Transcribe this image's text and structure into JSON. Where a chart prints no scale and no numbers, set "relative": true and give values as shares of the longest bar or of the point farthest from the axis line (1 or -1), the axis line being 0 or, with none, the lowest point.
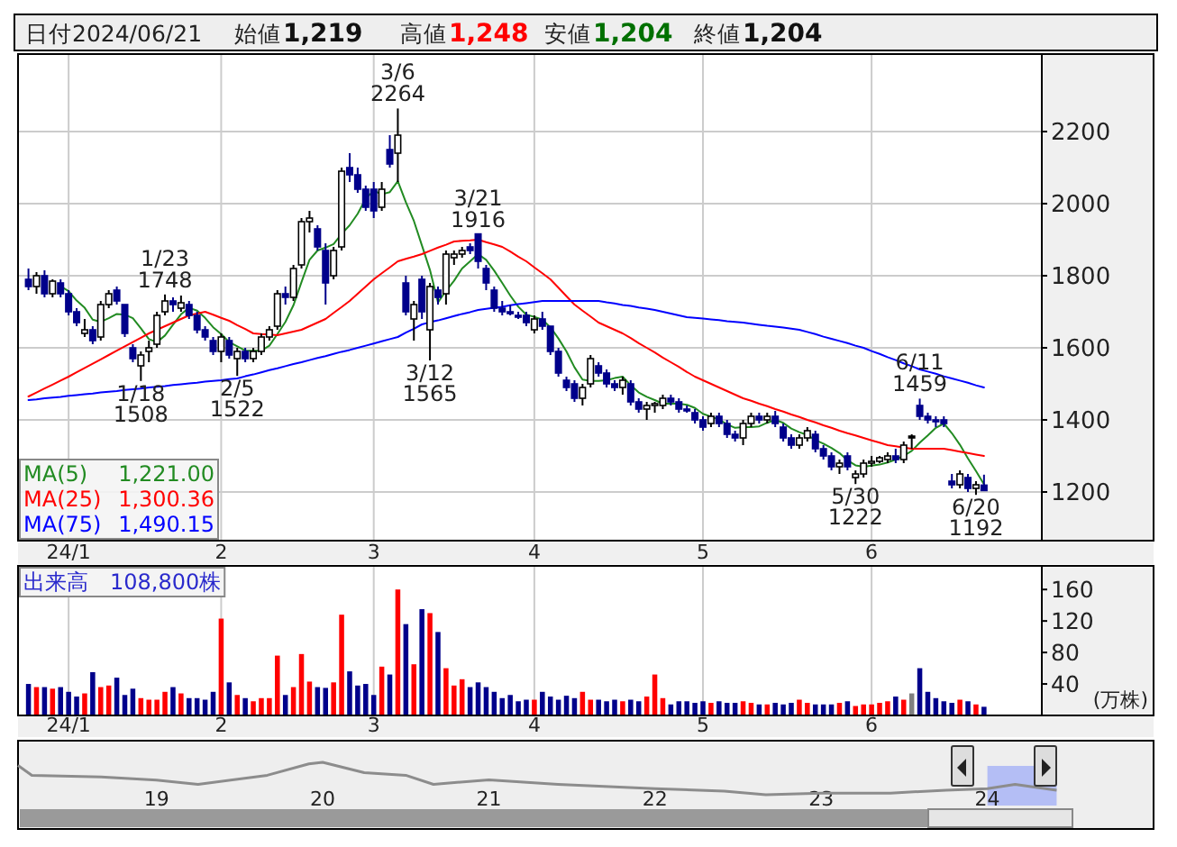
{
  "chart_data": [
    {
      "type": "candlestick",
      "categories": [
        null,
        null,
        null,
        null,
        null,
        "24/1",
        null,
        null,
        null,
        null,
        null,
        null,
        null,
        null,
        null,
        null,
        null,
        null,
        null,
        null,
        null,
        null,
        null,
        null,
        "2",
        null,
        null,
        null,
        null,
        null,
        null,
        null,
        null,
        null,
        null,
        null,
        null,
        null,
        null,
        null,
        null,
        null,
        null,
        "3",
        null,
        null,
        null,
        null,
        null,
        null,
        null,
        null,
        null,
        null,
        null,
        null,
        null,
        null,
        null,
        null,
        null,
        null,
        null,
        "4",
        null,
        null,
        null,
        null,
        null,
        null,
        null,
        null,
        null,
        null,
        null,
        null,
        null,
        null,
        null,
        null,
        null,
        null,
        null,
        null,
        "5",
        null,
        null,
        null,
        null,
        null,
        null,
        null,
        null,
        null,
        null,
        null,
        null,
        null,
        null,
        null,
        null,
        null,
        null,
        null,
        null,
        "6",
        null,
        null,
        null,
        null,
        null,
        null,
        null,
        null,
        null,
        null,
        null,
        null,
        null,
        null
      ],
      "series": [
        {
          "type": "candlestick",
          "color": "#00008b",
          "colors": [
            "#00008b",
            "#ffffff",
            "#00008b",
            "#ffffff",
            "#00008b",
            "#00008b",
            "#00008b",
            "#ffffff",
            "#00008b",
            "#ffffff",
            "#ffffff",
            "#00008b",
            "#00008b",
            "#00008b",
            "#ffffff",
            "#ffffff",
            "#ffffff",
            "#ffffff",
            "#00008b",
            "#ffffff",
            "#00008b",
            "#00008b",
            "#00008b",
            "#00008b",
            "#ffffff",
            "#00008b",
            "#ffffff",
            "#00008b",
            "#ffffff",
            "#ffffff",
            "#ffffff",
            "#ffffff",
            "#00008b",
            "#ffffff",
            "#ffffff",
            "#ffffff",
            "#00008b",
            "#00008b",
            "#ffffff",
            "#ffffff",
            "#00008b",
            "#00008b",
            "#00008b",
            "#00008b",
            "#ffffff",
            "#00008b",
            "#ffffff",
            "#00008b",
            "#ffffff",
            "#00008b",
            "#ffffff",
            "#00008b",
            "#ffffff",
            "#ffffff",
            "#ffffff",
            "#00008b",
            "#00008b",
            "#00008b",
            "#00008b",
            "#00008b",
            "#00008b",
            "#00008b",
            "#00008b",
            "#ffffff",
            "#00008b",
            "#00008b",
            "#00008b",
            "#00008b",
            "#00008b",
            "#ffffff",
            "#ffffff",
            "#00008b",
            "#00008b",
            "#00008b",
            "#ffffff",
            "#00008b",
            "#00008b",
            "#ffffff",
            "#ffffff",
            "#ffffff",
            "#00008b",
            "#00008b",
            "#00008b",
            "#00008b",
            "#00008b",
            "#ffffff",
            "#00008b",
            "#00008b",
            "#00008b",
            "#ffffff",
            "#ffffff",
            "#00008b",
            "#ffffff",
            "#00008b",
            "#00008b",
            "#00008b",
            "#ffffff",
            "#ffffff",
            "#00008b",
            "#00008b",
            "#00008b",
            "#ffffff",
            "#00008b",
            "#ffffff",
            "#ffffff",
            "#ffffff",
            "#ffffff",
            "#ffffff",
            "#00008b",
            "#ffffff",
            "#000000",
            "#00008b",
            "#00008b",
            "#00008b",
            "#00008b",
            "#00008b",
            "#ffffff",
            "#00008b",
            "#ffffff",
            "#00008b"
          ],
          "ohlc": [
            [
              1790,
              1820,
              1760,
              1770
            ],
            [
              1770,
              1810,
              1750,
              1800
            ],
            [
              1800,
              1815,
              1740,
              1750
            ],
            [
              1750,
              1790,
              1740,
              1785
            ],
            [
              1780,
              1790,
              1740,
              1750
            ],
            [
              1750,
              1760,
              1690,
              1700
            ],
            [
              1700,
              1710,
              1660,
              1670
            ],
            [
              1640,
              1680,
              1630,
              1650
            ],
            [
              1650,
              1660,
              1610,
              1620
            ],
            [
              1630,
              1730,
              1620,
              1720
            ],
            [
              1720,
              1760,
              1710,
              1750
            ],
            [
              1760,
              1770,
              1720,
              1730
            ],
            [
              1720,
              1720,
              1630,
              1640
            ],
            [
              1600,
              1610,
              1560,
              1570
            ],
            [
              1550,
              1590,
              1508,
              1580
            ],
            [
              1590,
              1620,
              1560,
              1600
            ],
            [
              1610,
              1700,
              1600,
              1690
            ],
            [
              1700,
              1748,
              1690,
              1730
            ],
            [
              1730,
              1740,
              1700,
              1720
            ],
            [
              1710,
              1745,
              1700,
              1725
            ],
            [
              1720,
              1730,
              1680,
              1690
            ],
            [
              1690,
              1700,
              1640,
              1650
            ],
            [
              1650,
              1660,
              1620,
              1630
            ],
            [
              1620,
              1630,
              1580,
              1590
            ],
            [
              1590,
              1640,
              1560,
              1630
            ],
            [
              1620,
              1630,
              1570,
              1580
            ],
            [
              1570,
              1600,
              1522,
              1590
            ],
            [
              1590,
              1600,
              1560,
              1570
            ],
            [
              1570,
              1600,
              1560,
              1590
            ],
            [
              1590,
              1640,
              1580,
              1630
            ],
            [
              1630,
              1660,
              1620,
              1650
            ],
            [
              1660,
              1760,
              1650,
              1750
            ],
            [
              1750,
              1770,
              1720,
              1740
            ],
            [
              1740,
              1830,
              1730,
              1820
            ],
            [
              1830,
              1960,
              1820,
              1950
            ],
            [
              1950,
              1980,
              1920,
              1960
            ],
            [
              1930,
              1940,
              1870,
              1880
            ],
            [
              1870,
              1890,
              1720,
              1780
            ],
            [
              1800,
              1880,
              1790,
              1870
            ],
            [
              1880,
              2100,
              1870,
              2090
            ],
            [
              2100,
              2140,
              2060,
              2080
            ],
            [
              2080,
              2100,
              2030,
              2040
            ],
            [
              2040,
              2050,
              1980,
              1990
            ],
            [
              2040,
              2060,
              1960,
              1980
            ],
            [
              1990,
              2060,
              1980,
              2040
            ],
            [
              2150,
              2190,
              2100,
              2110
            ],
            [
              2140,
              2264,
              2060,
              2190
            ],
            [
              1780,
              1800,
              1690,
              1700
            ],
            [
              1680,
              1730,
              1620,
              1720
            ],
            [
              1790,
              1800,
              1680,
              1700
            ],
            [
              1650,
              1780,
              1565,
              1770
            ],
            [
              1760,
              1770,
              1720,
              1740
            ],
            [
              1750,
              1870,
              1720,
              1860
            ],
            [
              1850,
              1870,
              1830,
              1860
            ],
            [
              1860,
              1880,
              1850,
              1870
            ],
            [
              1880,
              1890,
              1860,
              1870
            ],
            [
              1916,
              1916,
              1820,
              1840
            ],
            [
              1820,
              1830,
              1760,
              1780
            ],
            [
              1760,
              1770,
              1700,
              1710
            ],
            [
              1710,
              1730,
              1690,
              1700
            ],
            [
              1700,
              1720,
              1690,
              1695
            ],
            [
              1690,
              1700,
              1680,
              1685
            ],
            [
              1690,
              1700,
              1660,
              1670
            ],
            [
              1650,
              1690,
              1640,
              1680
            ],
            [
              1680,
              1700,
              1650,
              1660
            ],
            [
              1660,
              1660,
              1580,
              1590
            ],
            [
              1590,
              1600,
              1520,
              1530
            ],
            [
              1510,
              1520,
              1480,
              1490
            ],
            [
              1500,
              1510,
              1450,
              1460
            ],
            [
              1460,
              1500,
              1440,
              1490
            ],
            [
              1500,
              1580,
              1490,
              1570
            ],
            [
              1550,
              1560,
              1520,
              1530
            ],
            [
              1530,
              1540,
              1490,
              1500
            ],
            [
              1500,
              1510,
              1480,
              1490
            ],
            [
              1490,
              1520,
              1470,
              1510
            ],
            [
              1500,
              1510,
              1440,
              1450
            ],
            [
              1450,
              1460,
              1420,
              1430
            ],
            [
              1430,
              1450,
              1400,
              1440
            ],
            [
              1440,
              1450,
              1420,
              1445
            ],
            [
              1440,
              1470,
              1430,
              1460
            ],
            [
              1460,
              1470,
              1440,
              1450
            ],
            [
              1450,
              1460,
              1420,
              1430
            ],
            [
              1430,
              1440,
              1420,
              1425
            ],
            [
              1420,
              1430,
              1390,
              1400
            ],
            [
              1400,
              1410,
              1370,
              1380
            ],
            [
              1390,
              1420,
              1380,
              1410
            ],
            [
              1410,
              1420,
              1380,
              1390
            ],
            [
              1390,
              1400,
              1350,
              1360
            ],
            [
              1360,
              1370,
              1340,
              1350
            ],
            [
              1350,
              1400,
              1330,
              1390
            ],
            [
              1390,
              1420,
              1380,
              1410
            ],
            [
              1410,
              1420,
              1390,
              1400
            ],
            [
              1400,
              1420,
              1390,
              1410
            ],
            [
              1410,
              1425,
              1380,
              1390
            ],
            [
              1380,
              1390,
              1340,
              1350
            ],
            [
              1350,
              1360,
              1320,
              1330
            ],
            [
              1330,
              1360,
              1320,
              1350
            ],
            [
              1350,
              1380,
              1340,
              1370
            ],
            [
              1360,
              1370,
              1310,
              1320
            ],
            [
              1320,
              1330,
              1290,
              1300
            ],
            [
              1300,
              1310,
              1260,
              1270
            ],
            [
              1270,
              1290,
              1250,
              1280
            ],
            [
              1300,
              1310,
              1260,
              1270
            ],
            [
              1240,
              1260,
              1222,
              1250
            ],
            [
              1250,
              1290,
              1240,
              1280
            ],
            [
              1280,
              1300,
              1270,
              1285
            ],
            [
              1285,
              1300,
              1280,
              1295
            ],
            [
              1290,
              1310,
              1280,
              1300
            ],
            [
              1300,
              1320,
              1280,
              1290
            ],
            [
              1290,
              1340,
              1280,
              1330
            ],
            [
              1355,
              1360,
              1320,
              1355
            ],
            [
              1440,
              1459,
              1400,
              1410
            ],
            [
              1410,
              1420,
              1390,
              1400
            ],
            [
              1400,
              1410,
              1380,
              1395
            ],
            [
              1400,
              1410,
              1380,
              1390
            ],
            [
              1230,
              1250,
              1210,
              1220
            ],
            [
              1220,
              1260,
              1210,
              1250
            ],
            [
              1240,
              1250,
              1200,
              1210
            ],
            [
              1210,
              1230,
              1192,
              1220
            ],
            [
              1219,
              1248,
              1204,
              1204
            ]
          ]
        },
        {
          "type": "line",
          "name": "MA(5)",
          "color": "#228b22",
          "values": [
            null,
            null,
            null,
            null,
            1771,
            1757,
            1731,
            1711,
            1678,
            1672,
            1682,
            1694,
            1692,
            1682,
            1654,
            1624,
            1616,
            1634,
            1664,
            1693,
            1711,
            1703,
            1683,
            1657,
            1638,
            1616,
            1604,
            1592,
            1592,
            1592,
            1606,
            1638,
            1672,
            1718,
            1782,
            1844,
            1870,
            1878,
            1888,
            1916,
            1940,
            1972,
            2014,
            2036,
            2026,
            2032,
            2062,
            2004,
            1952,
            1884,
            1816,
            1726,
            1758,
            1786,
            1820,
            1840,
            1860,
            1844,
            1814,
            1780,
            1745,
            1714,
            1692,
            1686,
            1678,
            1657,
            1626,
            1590,
            1546,
            1512,
            1508,
            1508,
            1510,
            1516,
            1520,
            1496,
            1476,
            1464,
            1455,
            1445,
            1445,
            1445,
            1442,
            1433,
            1417,
            1409,
            1401,
            1388,
            1378,
            1380,
            1380,
            1382,
            1392,
            1400,
            1392,
            1376,
            1366,
            1358,
            1344,
            1334,
            1322,
            1308,
            1288,
            1274,
            1270,
            1273,
            1276,
            1282,
            1290,
            1300,
            1314,
            1337,
            1357,
            1378,
            1390,
            1363,
            1331,
            1293,
            1258,
            1221
          ]
        },
        {
          "type": "line",
          "name": "MA(25)",
          "color": "#ff0000",
          "values": [
            1465,
            1476,
            1487,
            1498,
            1509,
            1520,
            1532,
            1544,
            1556,
            1568,
            1580,
            1592,
            1604,
            1616,
            1628,
            1640,
            1650,
            1660,
            1670,
            1680,
            1690,
            1695,
            1700,
            1692,
            1683,
            1675,
            1663,
            1652,
            1640,
            1638,
            1637,
            1635,
            1640,
            1645,
            1650,
            1660,
            1670,
            1680,
            1697,
            1713,
            1730,
            1750,
            1770,
            1790,
            1807,
            1823,
            1840,
            1847,
            1853,
            1860,
            1869,
            1878,
            1886,
            1895,
            1897,
            1898,
            1900,
            1893,
            1887,
            1880,
            1867,
            1853,
            1840,
            1823,
            1807,
            1790,
            1767,
            1743,
            1720,
            1703,
            1687,
            1670,
            1660,
            1650,
            1640,
            1627,
            1613,
            1600,
            1587,
            1573,
            1560,
            1547,
            1533,
            1520,
            1510,
            1500,
            1490,
            1480,
            1470,
            1460,
            1453,
            1445,
            1438,
            1430,
            1423,
            1415,
            1408,
            1400,
            1393,
            1385,
            1378,
            1370,
            1363,
            1357,
            1350,
            1343,
            1337,
            1330,
            1327,
            1323,
            1320,
            1320,
            1320,
            1320,
            1320,
            1316,
            1312,
            1308,
            1304,
            1300
          ]
        },
        {
          "type": "line",
          "name": "MA(75)",
          "color": "#0000ff",
          "values": [
            1455,
            1457,
            1460,
            1462,
            1464,
            1467,
            1469,
            1471,
            1473,
            1476,
            1478,
            1480,
            1483,
            1485,
            1487,
            1490,
            1492,
            1494,
            1497,
            1499,
            1501,
            1503,
            1506,
            1508,
            1510,
            1513,
            1515,
            1521,
            1526,
            1532,
            1538,
            1543,
            1549,
            1555,
            1560,
            1566,
            1572,
            1577,
            1583,
            1589,
            1594,
            1600,
            1606,
            1612,
            1618,
            1624,
            1630,
            1642,
            1653,
            1665,
            1671,
            1676,
            1682,
            1688,
            1694,
            1699,
            1705,
            1708,
            1711,
            1714,
            1718,
            1721,
            1724,
            1727,
            1730,
            1730,
            1730,
            1730,
            1730,
            1730,
            1730,
            1730,
            1726,
            1723,
            1719,
            1716,
            1712,
            1709,
            1705,
            1700,
            1695,
            1690,
            1685,
            1683,
            1681,
            1679,
            1677,
            1674,
            1672,
            1670,
            1667,
            1664,
            1661,
            1659,
            1656,
            1653,
            1650,
            1644,
            1638,
            1631,
            1625,
            1619,
            1613,
            1606,
            1600,
            1591,
            1583,
            1574,
            1566,
            1557,
            1549,
            1540,
            1534,
            1528,
            1521,
            1515,
            1509,
            1503,
            1496,
            1490
          ]
        }
      ],
      "ylim": [
        1065,
        2415
      ],
      "yticks": [
        1200,
        1400,
        1600,
        1800,
        2000,
        2200
      ],
      "grid": true,
      "legend": "bottom left",
      "annotations": [
        "日付",
        "2024/06/21",
        "始値",
        "1,219",
        "高値",
        "1,248",
        "安値",
        "1,204",
        "終値",
        "1,204",
        "1,221.00",
        "1,300.36",
        "1,490.15",
        {
          "text": "1/18\n1508",
          "y": 1508
        },
        {
          "text": "1/23\n1748",
          "y": 1748
        },
        {
          "text": "2/5\n1522",
          "y": 1522
        },
        {
          "text": "3/6\n2264",
          "y": 2264
        },
        {
          "text": "3/12\n1565",
          "y": 1565
        },
        {
          "text": "3/21\n1916",
          "y": 1916
        },
        {
          "text": "5/30\n1222",
          "y": 1222
        },
        {
          "text": "6/11\n1459",
          "y": 1459
        },
        {
          "text": "6/20\n1192",
          "y": 1192
        }
      ]
    },
    {
      "type": "bar",
      "categories": [
        null,
        null,
        null,
        null,
        null,
        "24/1",
        null,
        null,
        null,
        null,
        null,
        null,
        null,
        null,
        null,
        null,
        null,
        null,
        null,
        null,
        null,
        null,
        null,
        null,
        "2",
        null,
        null,
        null,
        null,
        null,
        null,
        null,
        null,
        null,
        null,
        null,
        null,
        null,
        null,
        null,
        null,
        null,
        null,
        "3",
        null,
        null,
        null,
        null,
        null,
        null,
        null,
        null,
        null,
        null,
        null,
        null,
        null,
        null,
        null,
        null,
        null,
        null,
        null,
        "4",
        null,
        null,
        null,
        null,
        null,
        null,
        null,
        null,
        null,
        null,
        null,
        null,
        null,
        null,
        null,
        null,
        null,
        null,
        null,
        null,
        "5",
        null,
        null,
        null,
        null,
        null,
        null,
        null,
        null,
        null,
        null,
        null,
        null,
        null,
        null,
        null,
        null,
        null,
        null,
        null,
        null,
        "6",
        null,
        null,
        null,
        null,
        null,
        null,
        null,
        null,
        null,
        null,
        null,
        null,
        null,
        null
      ],
      "values": [
        40,
        36,
        36,
        34,
        36,
        30,
        24,
        28,
        55,
        36,
        38,
        48,
        26,
        34,
        22,
        20,
        20,
        30,
        36,
        28,
        22,
        22,
        20,
        30,
        123,
        42,
        26,
        22,
        18,
        22,
        22,
        76,
        26,
        36,
        78,
        43,
        36,
        35,
        42,
        128,
        56,
        38,
        40,
        26,
        62,
        52,
        160,
        116,
        65,
        135,
        130,
        106,
        60,
        38,
        46,
        36,
        42,
        36,
        30,
        22,
        26,
        18,
        20,
        20,
        30,
        24,
        20,
        25,
        22,
        30,
        20,
        20,
        18,
        20,
        18,
        20,
        18,
        24,
        52,
        22,
        14,
        18,
        18,
        16,
        18,
        16,
        18,
        16,
        16,
        18,
        16,
        14,
        14,
        16,
        14,
        16,
        20,
        16,
        14,
        14,
        14,
        16,
        18,
        12,
        14,
        14,
        16,
        18,
        24,
        20,
        28,
        60,
        30,
        22,
        18,
        16,
        20,
        18,
        14,
        11
      ],
      "colors": [
        "#00008b",
        "#ff0000",
        "#00008b",
        "#ff0000",
        "#00008b",
        "#00008b",
        "#00008b",
        "#ff0000",
        "#00008b",
        "#ff0000",
        "#ff0000",
        "#00008b",
        "#00008b",
        "#00008b",
        "#ff0000",
        "#ff0000",
        "#ff0000",
        "#ff0000",
        "#00008b",
        "#ff0000",
        "#00008b",
        "#00008b",
        "#00008b",
        "#00008b",
        "#ff0000",
        "#00008b",
        "#ff0000",
        "#00008b",
        "#ff0000",
        "#ff0000",
        "#ff0000",
        "#ff0000",
        "#00008b",
        "#ff0000",
        "#ff0000",
        "#ff0000",
        "#00008b",
        "#00008b",
        "#ff0000",
        "#ff0000",
        "#00008b",
        "#00008b",
        "#00008b",
        "#00008b",
        "#ff0000",
        "#00008b",
        "#ff0000",
        "#00008b",
        "#ff0000",
        "#00008b",
        "#ff0000",
        "#00008b",
        "#ff0000",
        "#ff0000",
        "#ff0000",
        "#00008b",
        "#00008b",
        "#00008b",
        "#00008b",
        "#00008b",
        "#00008b",
        "#00008b",
        "#00008b",
        "#ff0000",
        "#00008b",
        "#00008b",
        "#00008b",
        "#00008b",
        "#00008b",
        "#ff0000",
        "#ff0000",
        "#00008b",
        "#00008b",
        "#00008b",
        "#ff0000",
        "#00008b",
        "#00008b",
        "#ff0000",
        "#ff0000",
        "#ff0000",
        "#00008b",
        "#00008b",
        "#00008b",
        "#00008b",
        "#00008b",
        "#ff0000",
        "#00008b",
        "#00008b",
        "#00008b",
        "#ff0000",
        "#ff0000",
        "#00008b",
        "#ff0000",
        "#00008b",
        "#00008b",
        "#00008b",
        "#ff0000",
        "#ff0000",
        "#00008b",
        "#00008b",
        "#00008b",
        "#ff0000",
        "#00008b",
        "#ff0000",
        "#ff0000",
        "#ff0000",
        "#ff0000",
        "#ff0000",
        "#00008b",
        "#ff0000",
        "#808080",
        "#00008b",
        "#00008b",
        "#00008b",
        "#00008b",
        "#00008b",
        "#ff0000",
        "#00008b",
        "#ff0000",
        "#00008b"
      ],
      "ylim": [
        0,
        190
      ],
      "yticks": [
        40,
        80,
        120,
        160
      ],
      "ylabel": "(万株)",
      "grid": "x",
      "annotations": [
        "出来高　108,800株"
      ]
    },
    {
      "type": "line",
      "relative": true,
      "color": "#8c8c8c",
      "x": [
        "2018-03",
        "2018-04",
        "2018-09",
        "2019-01",
        "2019-04",
        "2019-09",
        "2019-12",
        "2020-01",
        "2020-04",
        "2020-07",
        "2020-09",
        "2021-01",
        "2021-06",
        "2022-01",
        "2022-06",
        "2022-09",
        "2023-01",
        "2023-06",
        "2023-10",
        "2024-01",
        "2024-03",
        "2024-06"
      ],
      "values": [
        0.9,
        0.6,
        0.55,
        0.45,
        0.32,
        0.6,
        0.95,
        1,
        0.68,
        0.6,
        0.32,
        0.46,
        0.32,
        0.19,
        0.11,
        0,
        0.05,
        0.05,
        0.14,
        0.19,
        0.32,
        0.14
      ],
      "xlim": [
        "2018-03",
        "2025-01"
      ],
      "xticks": [
        {
          "value": "2019-01",
          "label": "19"
        },
        {
          "value": "2020-01",
          "label": "20"
        },
        {
          "value": "2021-01",
          "label": "21"
        },
        {
          "value": "2022-01",
          "label": "22"
        },
        {
          "value": "2023-01",
          "label": "23"
        },
        {
          "value": "2024-01",
          "label": "24"
        }
      ],
      "bands": [
        {
          "axis": "x",
          "from": "2024-01",
          "to": "2024-06",
          "color": "#b4bef5"
        }
      ],
      "tick_labels": "x"
    }
  ]
}
